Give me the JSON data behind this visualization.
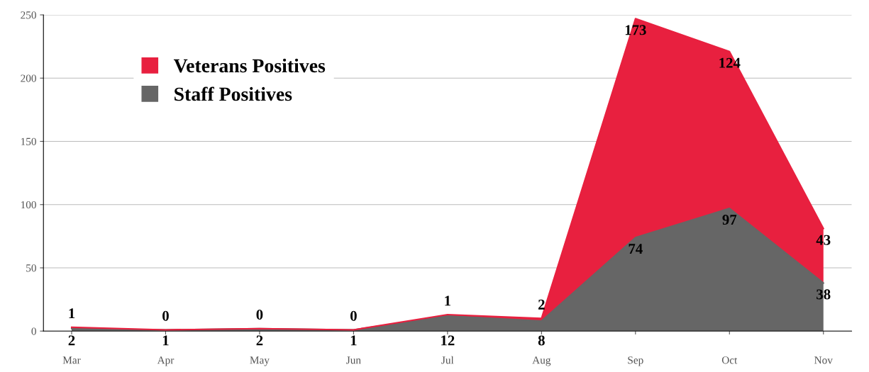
{
  "chart_data": {
    "type": "area",
    "stacked": true,
    "categories": [
      "Mar",
      "Apr",
      "May",
      "Jun",
      "Jul",
      "Aug",
      "Sep",
      "Oct",
      "Nov"
    ],
    "series": [
      {
        "name": "Staff Positives",
        "color": "#666666",
        "values": [
          2,
          1,
          2,
          1,
          12,
          8,
          74,
          97,
          38
        ]
      },
      {
        "name": "Veterans Positives",
        "color": "#e8203f",
        "values": [
          1,
          0,
          0,
          0,
          1,
          2,
          173,
          124,
          43
        ]
      }
    ],
    "ylim": [
      0,
      250
    ],
    "yticks": [
      0,
      50,
      100,
      150,
      200,
      250
    ],
    "grid": "y",
    "legend": "top left",
    "data_labels": true
  }
}
